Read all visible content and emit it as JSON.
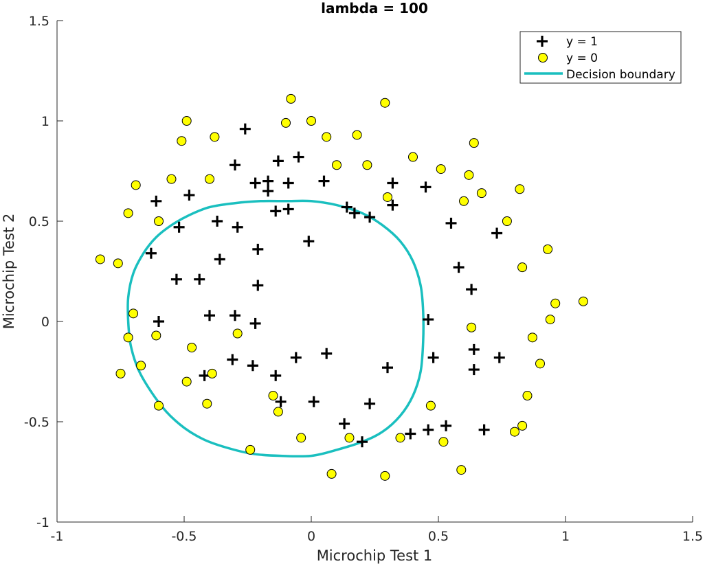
{
  "chart_data": {
    "type": "scatter",
    "title": "lambda = 100",
    "xlabel": "Microchip Test 1",
    "ylabel": "Microchip Test 2",
    "xlim": [
      -1,
      1.5
    ],
    "ylim": [
      -1,
      1.5
    ],
    "xticks": [
      "-1",
      "-0.5",
      "0",
      "0.5",
      "1",
      "1.5"
    ],
    "yticks": [
      "-1",
      "-0.5",
      "0",
      "0.5",
      "1",
      "1.5"
    ],
    "legend_position": "top-right",
    "grid": false,
    "series": [
      {
        "name": "y = 1",
        "marker": "plus",
        "color": "#000000",
        "points": [
          [
            -0.26,
            0.96
          ],
          [
            -0.13,
            0.8
          ],
          [
            -0.05,
            0.82
          ],
          [
            -0.3,
            0.78
          ],
          [
            -0.22,
            0.69
          ],
          [
            -0.17,
            0.7
          ],
          [
            -0.17,
            0.65
          ],
          [
            -0.09,
            0.69
          ],
          [
            0.05,
            0.7
          ],
          [
            0.32,
            0.69
          ],
          [
            0.45,
            0.67
          ],
          [
            -0.61,
            0.6
          ],
          [
            -0.48,
            0.63
          ],
          [
            0.14,
            0.57
          ],
          [
            0.17,
            0.54
          ],
          [
            0.23,
            0.52
          ],
          [
            0.32,
            0.58
          ],
          [
            -0.14,
            0.55
          ],
          [
            -0.09,
            0.56
          ],
          [
            -0.37,
            0.5
          ],
          [
            -0.52,
            0.47
          ],
          [
            -0.29,
            0.47
          ],
          [
            0.55,
            0.49
          ],
          [
            0.73,
            0.44
          ],
          [
            -0.63,
            0.34
          ],
          [
            -0.21,
            0.36
          ],
          [
            -0.01,
            0.4
          ],
          [
            -0.36,
            0.31
          ],
          [
            0.58,
            0.27
          ],
          [
            -0.53,
            0.21
          ],
          [
            -0.44,
            0.21
          ],
          [
            -0.21,
            0.18
          ],
          [
            0.63,
            0.16
          ],
          [
            -0.6,
            0.0
          ],
          [
            -0.4,
            0.03
          ],
          [
            -0.3,
            0.03
          ],
          [
            -0.22,
            -0.01
          ],
          [
            0.46,
            0.01
          ],
          [
            -0.31,
            -0.19
          ],
          [
            -0.23,
            -0.22
          ],
          [
            -0.06,
            -0.18
          ],
          [
            0.06,
            -0.16
          ],
          [
            0.48,
            -0.18
          ],
          [
            0.64,
            -0.14
          ],
          [
            0.74,
            -0.18
          ],
          [
            0.3,
            -0.23
          ],
          [
            0.64,
            -0.24
          ],
          [
            -0.42,
            -0.27
          ],
          [
            -0.14,
            -0.27
          ],
          [
            -0.12,
            -0.4
          ],
          [
            0.01,
            -0.4
          ],
          [
            0.23,
            -0.41
          ],
          [
            0.13,
            -0.51
          ],
          [
            0.46,
            -0.54
          ],
          [
            0.53,
            -0.52
          ],
          [
            0.68,
            -0.54
          ],
          [
            0.39,
            -0.56
          ],
          [
            0.2,
            -0.6
          ]
        ]
      },
      {
        "name": "y = 0",
        "marker": "circle",
        "color": "#ffff00",
        "points": [
          [
            -0.08,
            1.11
          ],
          [
            0.29,
            1.09
          ],
          [
            -0.49,
            1.0
          ],
          [
            -0.1,
            0.99
          ],
          [
            0.0,
            1.0
          ],
          [
            -0.51,
            0.9
          ],
          [
            -0.38,
            0.92
          ],
          [
            0.06,
            0.92
          ],
          [
            0.18,
            0.93
          ],
          [
            0.64,
            0.89
          ],
          [
            0.4,
            0.82
          ],
          [
            0.1,
            0.78
          ],
          [
            0.22,
            0.78
          ],
          [
            0.51,
            0.76
          ],
          [
            0.62,
            0.73
          ],
          [
            -0.69,
            0.68
          ],
          [
            -0.55,
            0.71
          ],
          [
            -0.4,
            0.71
          ],
          [
            0.67,
            0.64
          ],
          [
            0.82,
            0.66
          ],
          [
            0.6,
            0.6
          ],
          [
            0.3,
            0.62
          ],
          [
            -0.72,
            0.54
          ],
          [
            -0.6,
            0.5
          ],
          [
            0.77,
            0.5
          ],
          [
            -0.83,
            0.31
          ],
          [
            -0.76,
            0.29
          ],
          [
            0.93,
            0.36
          ],
          [
            0.83,
            0.27
          ],
          [
            -0.7,
            0.04
          ],
          [
            0.96,
            0.09
          ],
          [
            1.07,
            0.1
          ],
          [
            0.94,
            0.01
          ],
          [
            -0.72,
            -0.08
          ],
          [
            -0.61,
            -0.07
          ],
          [
            -0.29,
            -0.06
          ],
          [
            0.63,
            -0.03
          ],
          [
            -0.47,
            -0.13
          ],
          [
            0.87,
            -0.08
          ],
          [
            -0.67,
            -0.22
          ],
          [
            -0.75,
            -0.26
          ],
          [
            -0.49,
            -0.3
          ],
          [
            -0.39,
            -0.26
          ],
          [
            0.9,
            -0.21
          ],
          [
            -0.15,
            -0.37
          ],
          [
            -0.13,
            -0.45
          ],
          [
            0.47,
            -0.42
          ],
          [
            0.85,
            -0.37
          ],
          [
            -0.6,
            -0.42
          ],
          [
            -0.41,
            -0.41
          ],
          [
            -0.04,
            -0.58
          ],
          [
            0.15,
            -0.58
          ],
          [
            0.35,
            -0.58
          ],
          [
            0.52,
            -0.6
          ],
          [
            0.8,
            -0.55
          ],
          [
            0.83,
            -0.52
          ],
          [
            -0.24,
            -0.64
          ],
          [
            0.08,
            -0.76
          ],
          [
            0.29,
            -0.77
          ],
          [
            0.59,
            -0.74
          ]
        ]
      }
    ],
    "boundary": {
      "name": "Decision boundary",
      "color": "#1abfbf",
      "points": [
        [
          -0.2,
          0.6
        ],
        [
          -0.3,
          0.59
        ],
        [
          -0.4,
          0.57
        ],
        [
          -0.48,
          0.53
        ],
        [
          -0.55,
          0.48
        ],
        [
          -0.61,
          0.42
        ],
        [
          -0.66,
          0.34
        ],
        [
          -0.7,
          0.24
        ],
        [
          -0.72,
          0.12
        ],
        [
          -0.72,
          0.0
        ],
        [
          -0.71,
          -0.12
        ],
        [
          -0.68,
          -0.24
        ],
        [
          -0.63,
          -0.35
        ],
        [
          -0.57,
          -0.45
        ],
        [
          -0.5,
          -0.53
        ],
        [
          -0.42,
          -0.59
        ],
        [
          -0.33,
          -0.63
        ],
        [
          -0.23,
          -0.66
        ],
        [
          -0.12,
          -0.67
        ],
        [
          0.0,
          -0.67
        ],
        [
          0.1,
          -0.64
        ],
        [
          0.2,
          -0.6
        ],
        [
          0.28,
          -0.55
        ],
        [
          0.35,
          -0.47
        ],
        [
          0.4,
          -0.37
        ],
        [
          0.43,
          -0.25
        ],
        [
          0.44,
          -0.1
        ],
        [
          0.44,
          0.05
        ],
        [
          0.43,
          0.18
        ],
        [
          0.4,
          0.3
        ],
        [
          0.35,
          0.4
        ],
        [
          0.28,
          0.48
        ],
        [
          0.2,
          0.54
        ],
        [
          0.1,
          0.58
        ],
        [
          0.0,
          0.6
        ],
        [
          -0.1,
          0.6
        ],
        [
          -0.2,
          0.6
        ]
      ]
    }
  }
}
